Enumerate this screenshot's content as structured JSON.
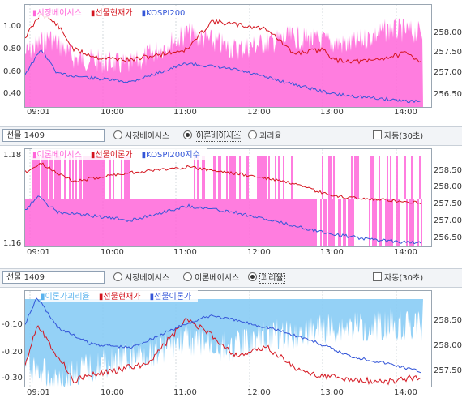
{
  "colors": {
    "pink": "#ff66d9",
    "red": "#d4141e",
    "blue": "#3456d8",
    "lightblue": "#88ccf5",
    "axis": "#9aa6b2"
  },
  "panel1": {
    "legend": [
      {
        "label": "시장베이시스",
        "color": "#ff66d9"
      },
      {
        "label": "선물현재가",
        "color": "#d4141e"
      },
      {
        "label": "KOSPI200",
        "color": "#3456d8"
      }
    ],
    "left_ticks": [
      "1.00",
      "0.80",
      "0.60",
      "0.40"
    ],
    "right_ticks": [
      "258.00",
      "257.50",
      "257.00",
      "256.50"
    ],
    "time_ticks": [
      "09:01",
      "10:00",
      "11:00",
      "12:00",
      "13:00",
      "14:00"
    ]
  },
  "toolbar2": {
    "code": "선물 1409",
    "options": [
      "시장베이시스",
      "이론베이시스",
      "괴리율"
    ],
    "selected": 1,
    "auto": "자동(30초)"
  },
  "panel2": {
    "legend": [
      {
        "label": "이론베이시스",
        "color": "#ff66d9"
      },
      {
        "label": "선물이론가",
        "color": "#d4141e"
      },
      {
        "label": "KOSPI200지수",
        "color": "#3456d8"
      }
    ],
    "left_ticks": [
      "1.18",
      "1.16"
    ],
    "right_ticks": [
      "258.50",
      "258.00",
      "257.50",
      "257.00",
      "256.50"
    ],
    "time_ticks": [
      "09:01",
      "10:00",
      "11:00",
      "12:00",
      "13:00",
      "14:00"
    ]
  },
  "toolbar3": {
    "code": "선물 1409",
    "options": [
      "시장베이시스",
      "이론베이시스",
      "괴리율"
    ],
    "selected": 2,
    "auto": "자동(30초)"
  },
  "panel3": {
    "legend": [
      {
        "label": "이론가괴리율",
        "color": "#88ccf5"
      },
      {
        "label": "선물현재가",
        "color": "#d4141e"
      },
      {
        "label": "선물이론가",
        "color": "#3456d8"
      }
    ],
    "left_ticks": [
      "-0.10",
      "-0.20",
      "-0.30"
    ],
    "right_ticks": [
      "258.50",
      "258.00",
      "257.50"
    ],
    "time_ticks": [
      "09:01",
      "10:00",
      "11:00",
      "12:00",
      "13:00",
      "14:00"
    ]
  }
}
